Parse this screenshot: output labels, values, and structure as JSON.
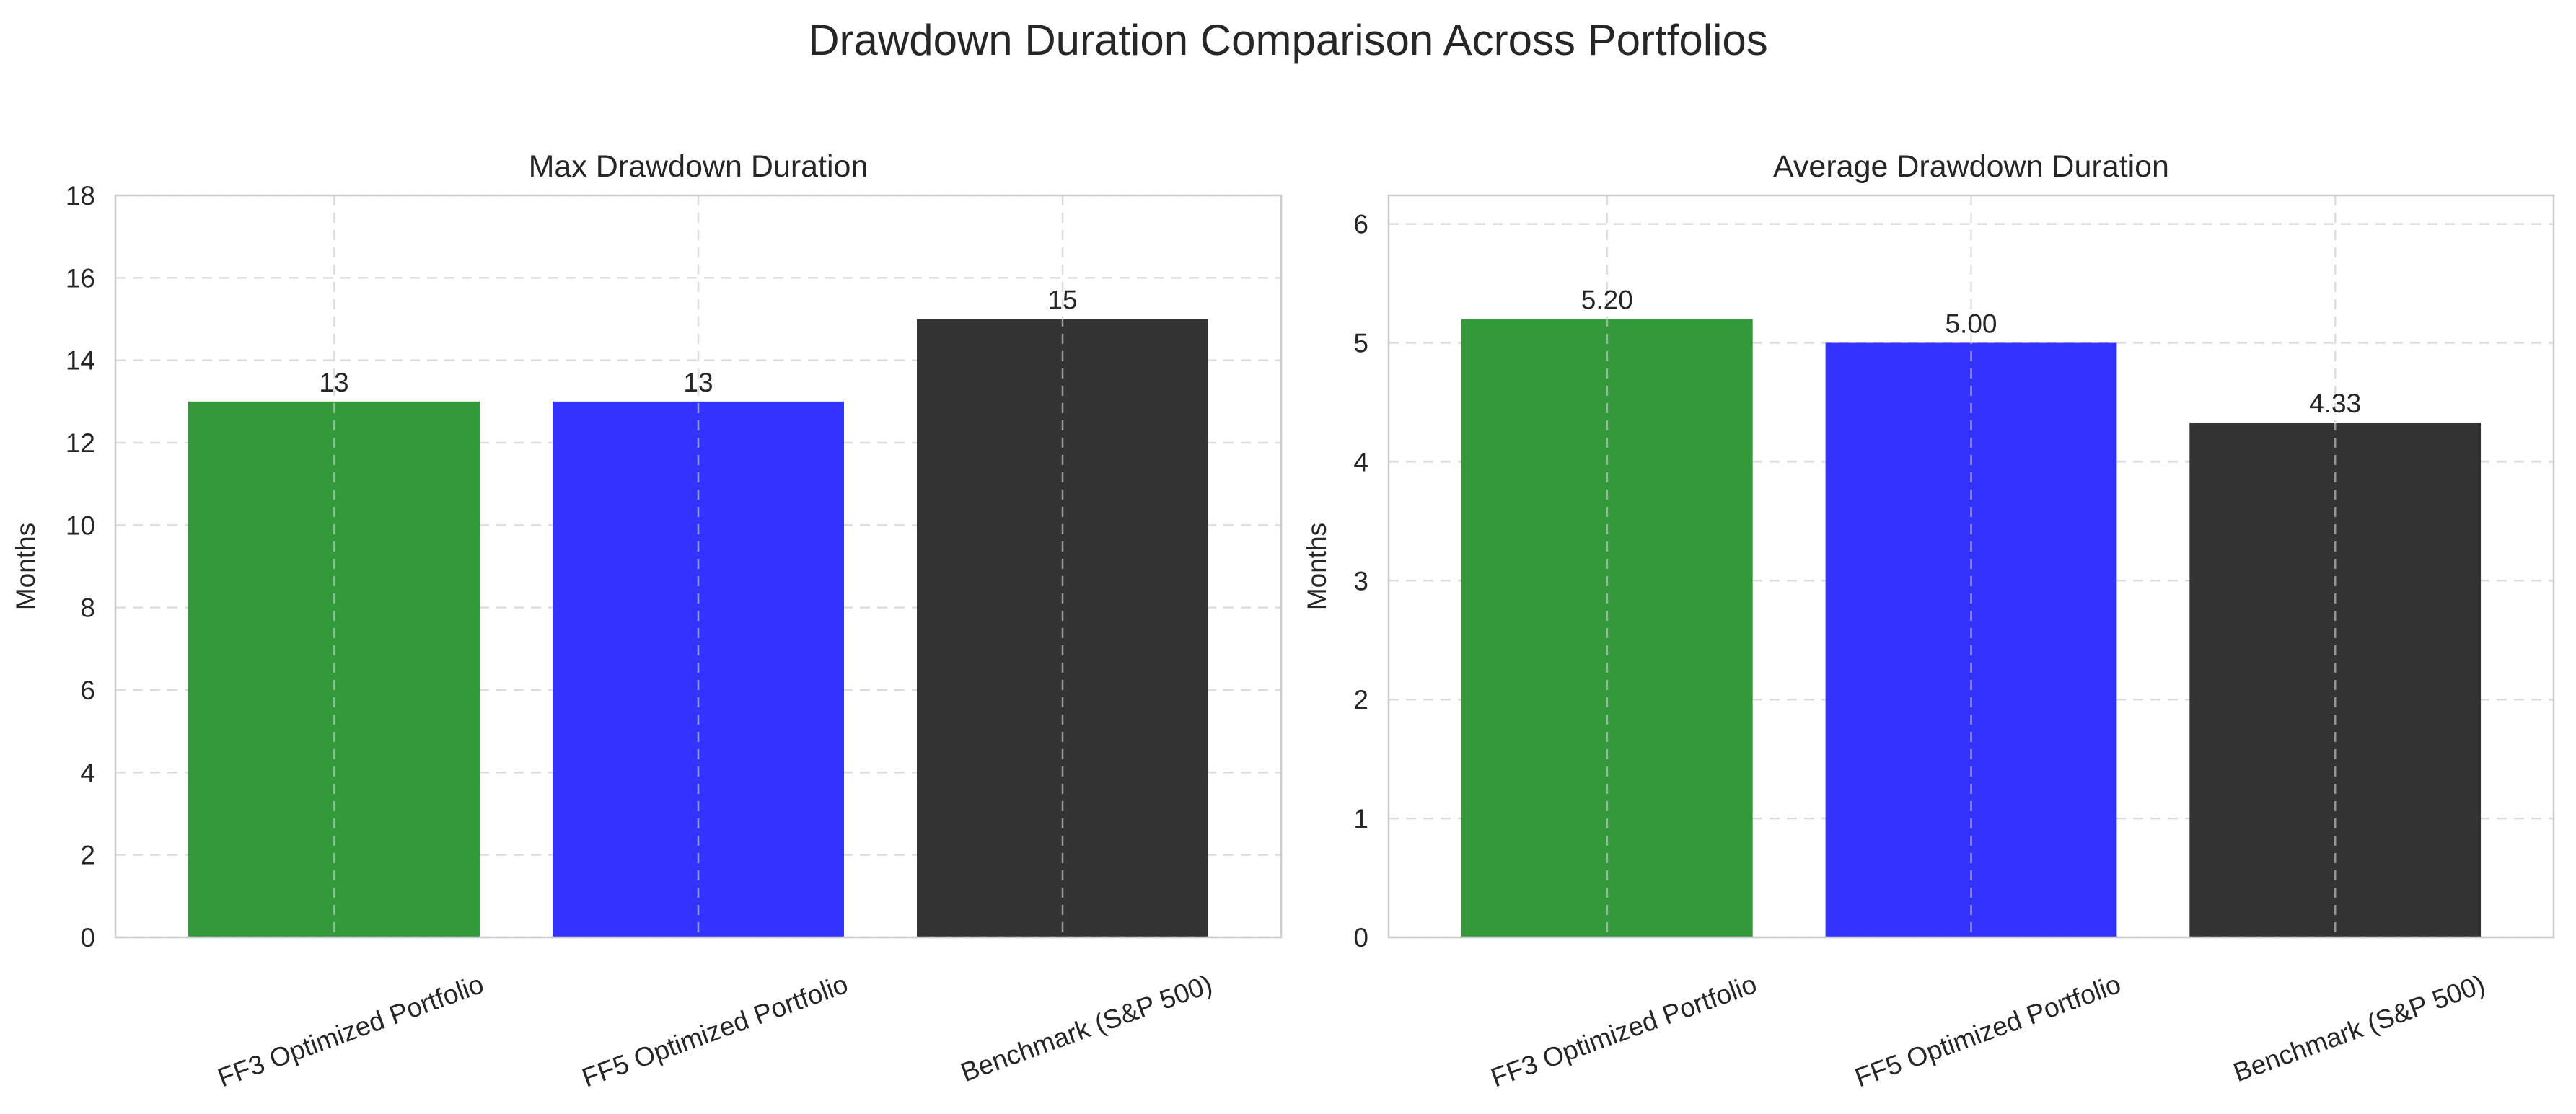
{
  "suptitle": "Drawdown Duration Comparison Across Portfolios",
  "colors": {
    "ff3": "#33993a",
    "ff5": "#3333ff",
    "benchmark": "#333333",
    "grid": "#cccccc",
    "frame": "#cccccc"
  },
  "chart_data": [
    {
      "type": "bar",
      "title": "Max Drawdown Duration",
      "xlabel": "",
      "ylabel": "Months",
      "categories": [
        "FF3 Optimized Portfolio",
        "FF5 Optimized Portfolio",
        "Benchmark (S&P 500)"
      ],
      "values": [
        13,
        13,
        15
      ],
      "value_labels": [
        "13",
        "13",
        "15"
      ],
      "bar_colors": [
        "#33993a",
        "#3333ff",
        "#333333"
      ],
      "ylim": [
        0,
        18
      ],
      "yticks": [
        0,
        2,
        4,
        6,
        8,
        10,
        12,
        14,
        16,
        18
      ],
      "grid": true
    },
    {
      "type": "bar",
      "title": "Average Drawdown Duration",
      "xlabel": "",
      "ylabel": "Months",
      "categories": [
        "FF3 Optimized Portfolio",
        "FF5 Optimized Portfolio",
        "Benchmark (S&P 500)"
      ],
      "values": [
        5.2,
        5.0,
        4.33
      ],
      "value_labels": [
        "5.20",
        "5.00",
        "4.33"
      ],
      "bar_colors": [
        "#33993a",
        "#3333ff",
        "#333333"
      ],
      "ylim": [
        0,
        6.24
      ],
      "yticks": [
        0,
        1,
        2,
        3,
        4,
        5,
        6
      ],
      "grid": true
    }
  ]
}
